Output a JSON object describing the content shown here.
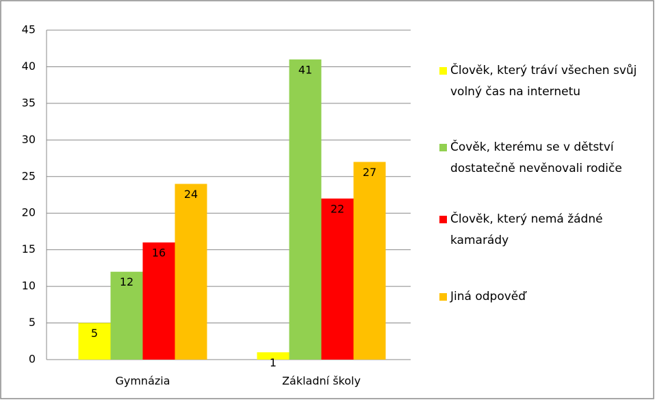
{
  "chart_data": {
    "type": "bar",
    "categories": [
      "Gymnázia",
      "Základní školy"
    ],
    "series": [
      {
        "name": "Člověk, který tráví všechen svůj volný čas na internetu",
        "color": "#ffff00",
        "values": [
          5,
          1
        ]
      },
      {
        "name": "Čověk, kterému se v dětství dostatečně nevěnovali rodiče",
        "color": "#92d050",
        "values": [
          12,
          41
        ]
      },
      {
        "name": "Člověk, který nemá žádné kamarády",
        "color": "#ff0000",
        "values": [
          16,
          22
        ]
      },
      {
        "name": "Jiná odpověď",
        "color": "#ffc000",
        "values": [
          24,
          27
        ]
      }
    ],
    "ylim": [
      0,
      45
    ],
    "yticks": [
      0,
      5,
      10,
      15,
      20,
      25,
      30,
      35,
      40,
      45
    ],
    "grid": true,
    "legend": "right"
  }
}
